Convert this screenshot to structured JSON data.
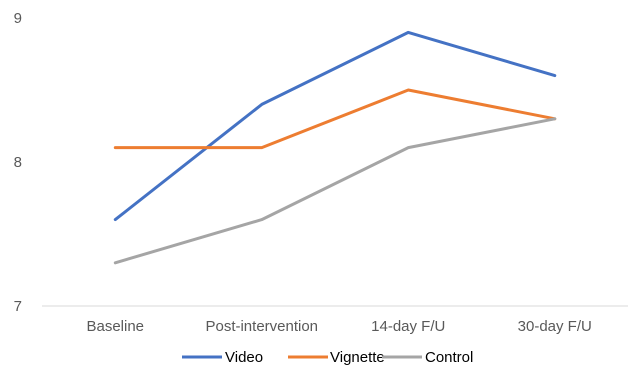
{
  "chart_data": {
    "type": "line",
    "categories": [
      "Baseline",
      "Post-intervention",
      "14-day F/U",
      "30-day F/U"
    ],
    "series": [
      {
        "name": "Video",
        "values": [
          7.6,
          8.4,
          8.9,
          8.6
        ],
        "color": "#4472C4"
      },
      {
        "name": "Vignette",
        "values": [
          8.1,
          8.1,
          8.5,
          8.3
        ],
        "color": "#ED7D31"
      },
      {
        "name": "Control",
        "values": [
          7.3,
          7.6,
          8.1,
          8.3
        ],
        "color": "#A5A5A5"
      }
    ],
    "y_ticks": [
      "7",
      "8",
      "9"
    ],
    "ylim": [
      7,
      9
    ],
    "grid": false,
    "legend_position": "bottom"
  }
}
